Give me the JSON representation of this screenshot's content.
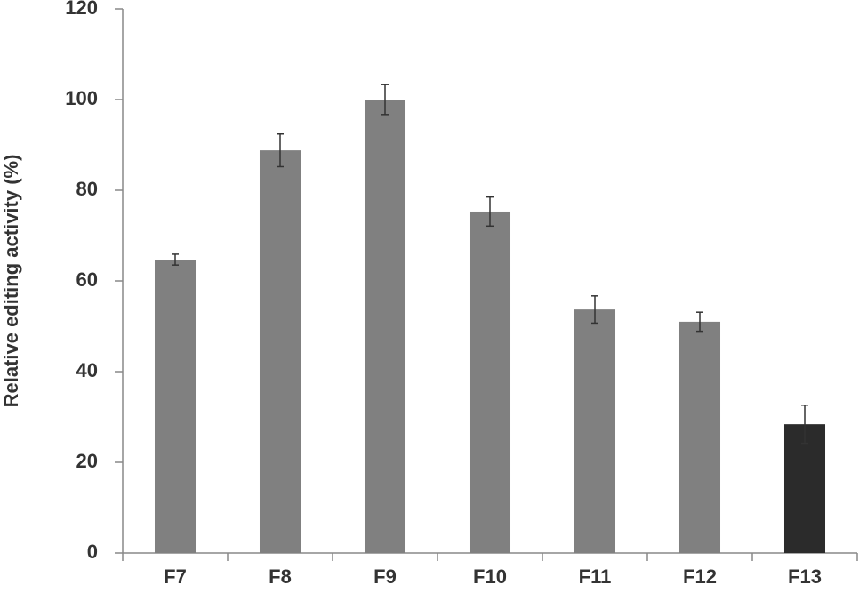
{
  "chart_data": {
    "type": "bar",
    "y_label": "Relative editing activity (%)",
    "categories": [
      "F7",
      "F8",
      "F9",
      "F10",
      "F11",
      "F12",
      "F13"
    ],
    "values": [
      64.7,
      88.8,
      100,
      75.3,
      53.7,
      51,
      28.4
    ],
    "errors": [
      1.2,
      3.6,
      3.3,
      3.2,
      3,
      2.1,
      4.2
    ],
    "colors": [
      "#808080",
      "#808080",
      "#808080",
      "#808080",
      "#808080",
      "#808080",
      "#2b2b2b"
    ],
    "ylim": [
      0,
      120
    ],
    "yticks": [
      0,
      20,
      40,
      60,
      80,
      100,
      120
    ],
    "grid": false
  }
}
